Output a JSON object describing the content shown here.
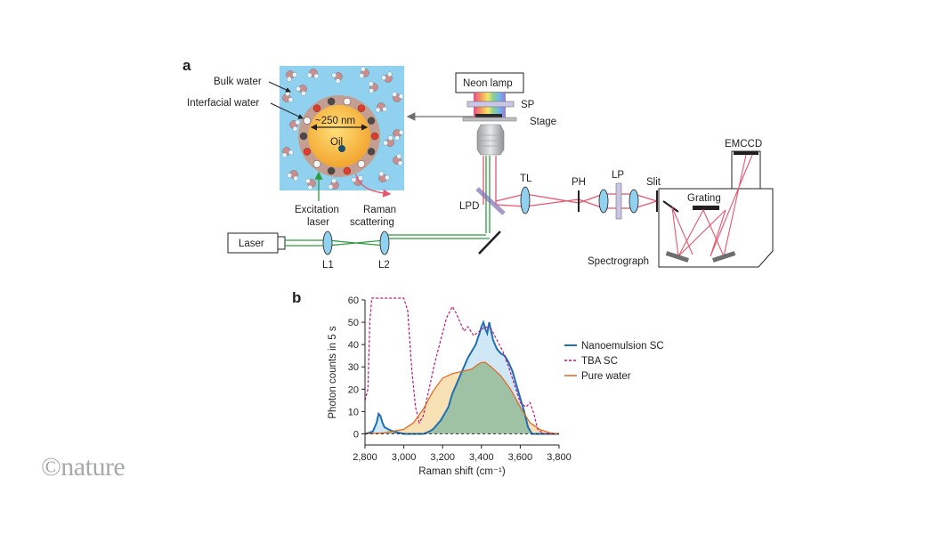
{
  "panel_a": {
    "letter": "a",
    "labels": {
      "bulk_water": "Bulk water",
      "interfacial_water": "Interfacial water",
      "size": "~250 nm",
      "oil": "Oil",
      "excitation_laser_1": "Excitation",
      "excitation_laser_2": "laser",
      "raman_scattering_1": "Raman",
      "raman_scattering_2": "scattering",
      "neon_lamp": "Neon lamp",
      "sp": "SP",
      "stage": "Stage",
      "lpd": "LPD",
      "tl": "TL",
      "ph": "PH",
      "lp": "LP",
      "slit": "Slit",
      "emccd": "EMCCD",
      "grating": "Grating",
      "spectrograph": "Spectrograph",
      "laser": "Laser",
      "l1": "L1",
      "l2": "L2"
    }
  },
  "panel_b": {
    "letter": "b"
  },
  "chart_data": {
    "type": "area",
    "xlabel": "Raman shift (cm⁻¹)",
    "ylabel": "Photon counts in 5 s",
    "xlim": [
      2800,
      3800
    ],
    "ylim": [
      -5,
      60
    ],
    "xticks": [
      2800,
      3000,
      3200,
      3400,
      3600,
      3800
    ],
    "xtick_labels": [
      "2,800",
      "3,000",
      "3,200",
      "3,400",
      "3,600",
      "3,800"
    ],
    "yticks": [
      0,
      10,
      20,
      30,
      40,
      50,
      60
    ],
    "ytick_labels": [
      "0",
      "10",
      "20",
      "30",
      "40",
      "50",
      "60"
    ],
    "legend_position": "right",
    "series": [
      {
        "name": "Nanoemulsion SC",
        "color": "#1f6fb5",
        "style": "solid",
        "fill": "#a9d6ee",
        "x": [
          2800,
          2840,
          2860,
          2870,
          2880,
          2890,
          2900,
          2920,
          2950,
          3000,
          3050,
          3100,
          3130,
          3150,
          3170,
          3190,
          3210,
          3230,
          3250,
          3270,
          3290,
          3310,
          3330,
          3350,
          3370,
          3390,
          3400,
          3410,
          3420,
          3430,
          3440,
          3450,
          3460,
          3480,
          3500,
          3520,
          3540,
          3560,
          3580,
          3600,
          3620,
          3640,
          3660,
          3700,
          3750,
          3800
        ],
        "y": [
          0,
          1,
          5,
          9,
          8,
          5,
          3,
          2,
          1,
          0,
          0,
          0,
          1,
          2,
          4,
          6,
          9,
          12,
          18,
          22,
          26,
          30,
          34,
          37,
          40,
          45,
          48,
          50,
          47,
          45,
          50,
          46,
          42,
          38,
          36,
          35,
          32,
          28,
          22,
          16,
          10,
          3,
          0,
          0,
          0,
          0
        ]
      },
      {
        "name": "TBA SC",
        "color": "#c0177a",
        "style": "dashed",
        "fill": null,
        "x": [
          2800,
          2815,
          2825,
          2835,
          2845,
          2860,
          2880,
          2900,
          2920,
          2950,
          2980,
          3000,
          3020,
          3040,
          3060,
          3080,
          3100,
          3130,
          3160,
          3190,
          3220,
          3250,
          3270,
          3290,
          3310,
          3330,
          3360,
          3390,
          3420,
          3450,
          3480,
          3510,
          3540,
          3570,
          3600,
          3630,
          3650,
          3670,
          3690,
          3720,
          3760,
          3800
        ],
        "y": [
          15,
          20,
          50,
          62,
          62,
          62,
          62,
          62,
          62,
          62,
          62,
          62,
          55,
          30,
          12,
          5,
          8,
          20,
          32,
          42,
          52,
          57,
          54,
          50,
          46,
          48,
          44,
          46,
          48,
          47,
          42,
          37,
          30,
          22,
          14,
          12,
          14,
          9,
          2,
          0,
          0,
          0
        ]
      },
      {
        "name": "Pure water",
        "color": "#e0661c",
        "style": "solid",
        "fill": "#f6dca8",
        "x": [
          2800,
          2900,
          3000,
          3050,
          3100,
          3150,
          3200,
          3250,
          3300,
          3350,
          3380,
          3400,
          3420,
          3450,
          3500,
          3550,
          3600,
          3650,
          3700,
          3750,
          3800
        ],
        "y": [
          0,
          0.5,
          2,
          5,
          11,
          19,
          25,
          27,
          28,
          29,
          31,
          32,
          32,
          30,
          26,
          20,
          12,
          5,
          2,
          0.5,
          0
        ]
      }
    ]
  },
  "watermark": "©nature"
}
